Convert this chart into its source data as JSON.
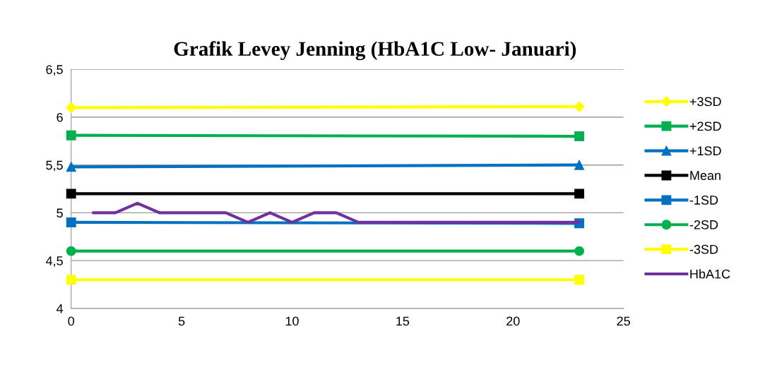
{
  "chart_data": {
    "type": "line",
    "title": "Grafik Levey Jenning (HbA1C Low- Januari)",
    "xlim": [
      0,
      25
    ],
    "xticks": [
      0,
      5,
      10,
      15,
      20,
      25
    ],
    "ylim": [
      4,
      6.5
    ],
    "yticks": [
      {
        "value": 4,
        "label": "4"
      },
      {
        "value": 4.5,
        "label": "4,5"
      },
      {
        "value": 5,
        "label": "5"
      },
      {
        "value": 5.5,
        "label": "5,5"
      },
      {
        "value": 6,
        "label": "6"
      },
      {
        "value": 6.5,
        "label": "6,5"
      }
    ],
    "grid": "y",
    "legend": "right",
    "series": [
      {
        "name": "+3SD",
        "color": "#ffff00",
        "marker": "diamond",
        "x": [
          0,
          23
        ],
        "values": [
          6.1,
          6.11
        ]
      },
      {
        "name": "+2SD",
        "color": "#00b050",
        "marker": "square",
        "x": [
          0,
          23
        ],
        "values": [
          5.81,
          5.8
        ]
      },
      {
        "name": "+1SD",
        "color": "#0070c0",
        "marker": "triangle",
        "x": [
          0,
          23
        ],
        "values": [
          5.48,
          5.5
        ]
      },
      {
        "name": "Mean",
        "color": "#000000",
        "marker": "square",
        "x": [
          0,
          23
        ],
        "values": [
          5.2,
          5.2
        ]
      },
      {
        "name": "-1SD",
        "color": "#0070c0",
        "marker": "square",
        "x": [
          0,
          23
        ],
        "values": [
          4.9,
          4.89
        ]
      },
      {
        "name": "-2SD",
        "color": "#00b050",
        "marker": "circle",
        "x": [
          0,
          23
        ],
        "values": [
          4.6,
          4.6
        ]
      },
      {
        "name": "-3SD",
        "color": "#ffff00",
        "marker": "square",
        "x": [
          0,
          23
        ],
        "values": [
          4.3,
          4.3
        ]
      },
      {
        "name": "HbA1C",
        "color": "#7030a0",
        "marker": "none",
        "x": [
          1,
          2,
          3,
          4,
          5,
          6,
          7,
          8,
          9,
          10,
          11,
          12,
          13,
          14,
          15,
          16,
          17,
          18,
          19,
          20,
          21,
          22,
          23
        ],
        "values": [
          5,
          5,
          5.1,
          5,
          5,
          5,
          5,
          4.9,
          5,
          4.9,
          5,
          5,
          4.9,
          4.9,
          4.9,
          4.9,
          4.9,
          4.9,
          4.9,
          4.9,
          4.9,
          4.9,
          4.9
        ]
      }
    ]
  }
}
